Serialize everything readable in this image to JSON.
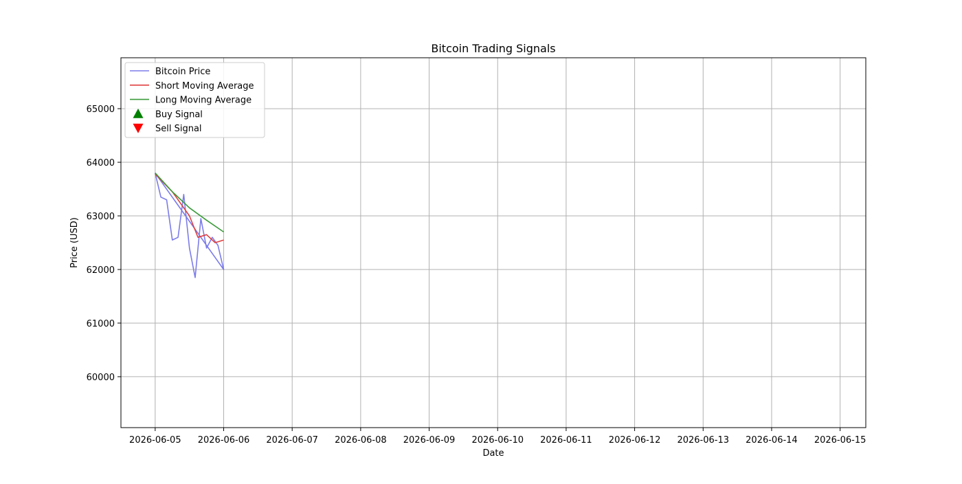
{
  "chart_data": {
    "type": "line",
    "title": "Bitcoin Trading Signals",
    "xlabel": "Date",
    "ylabel": "Price (USD)",
    "xlim": [
      "2026-06-04T12:00",
      "2026-06-15T09:00"
    ],
    "ylim": [
      59050,
      65950
    ],
    "x_ticks": [
      "2026-06-05",
      "2026-06-06",
      "2026-06-07",
      "2026-06-08",
      "2026-06-09",
      "2026-06-10",
      "2026-06-11",
      "2026-06-12",
      "2026-06-13",
      "2026-06-14",
      "2026-06-15"
    ],
    "y_ticks": [
      60000,
      61000,
      62000,
      63000,
      64000,
      65000
    ],
    "grid": true,
    "legend_position": "top-left",
    "series": [
      {
        "name": "Bitcoin Price",
        "color": "#7b7bea",
        "points": [
          [
            "2026-06-05T00:00",
            63800
          ],
          [
            "2026-06-05T02:00",
            63350
          ],
          [
            "2026-06-05T04:00",
            63300
          ],
          [
            "2026-06-05T06:00",
            62550
          ],
          [
            "2026-06-05T08:00",
            62600
          ],
          [
            "2026-06-05T10:00",
            63400
          ],
          [
            "2026-06-05T12:00",
            62400
          ],
          [
            "2026-06-05T14:00",
            61850
          ],
          [
            "2026-06-05T16:00",
            62950
          ],
          [
            "2026-06-05T18:00",
            62400
          ],
          [
            "2026-06-05T20:00",
            62600
          ],
          [
            "2026-06-05T22:00",
            62450
          ],
          [
            "2026-06-06T00:00",
            62000
          ],
          [
            "2026-06-05T00:00",
            63800
          ]
        ]
      },
      {
        "name": "Short Moving Average",
        "color": "#e04040",
        "points": [
          [
            "2026-06-05T00:00",
            63780
          ],
          [
            "2026-06-05T06:00",
            63450
          ],
          [
            "2026-06-05T12:00",
            63000
          ],
          [
            "2026-06-05T15:00",
            62600
          ],
          [
            "2026-06-05T18:00",
            62650
          ],
          [
            "2026-06-05T21:00",
            62500
          ],
          [
            "2026-06-06T00:00",
            62550
          ]
        ]
      },
      {
        "name": "Long Moving Average",
        "color": "#3a9a3a",
        "points": [
          [
            "2026-06-05T00:00",
            63800
          ],
          [
            "2026-06-05T06:00",
            63450
          ],
          [
            "2026-06-05T12:00",
            63150
          ],
          [
            "2026-06-05T18:00",
            62920
          ],
          [
            "2026-06-06T00:00",
            62700
          ]
        ]
      }
    ],
    "signals": [
      {
        "name": "Buy Signal",
        "color": "#008000",
        "marker": "triangle-up",
        "points": []
      },
      {
        "name": "Sell Signal",
        "color": "#ff0000",
        "marker": "triangle-down",
        "points": []
      }
    ]
  }
}
